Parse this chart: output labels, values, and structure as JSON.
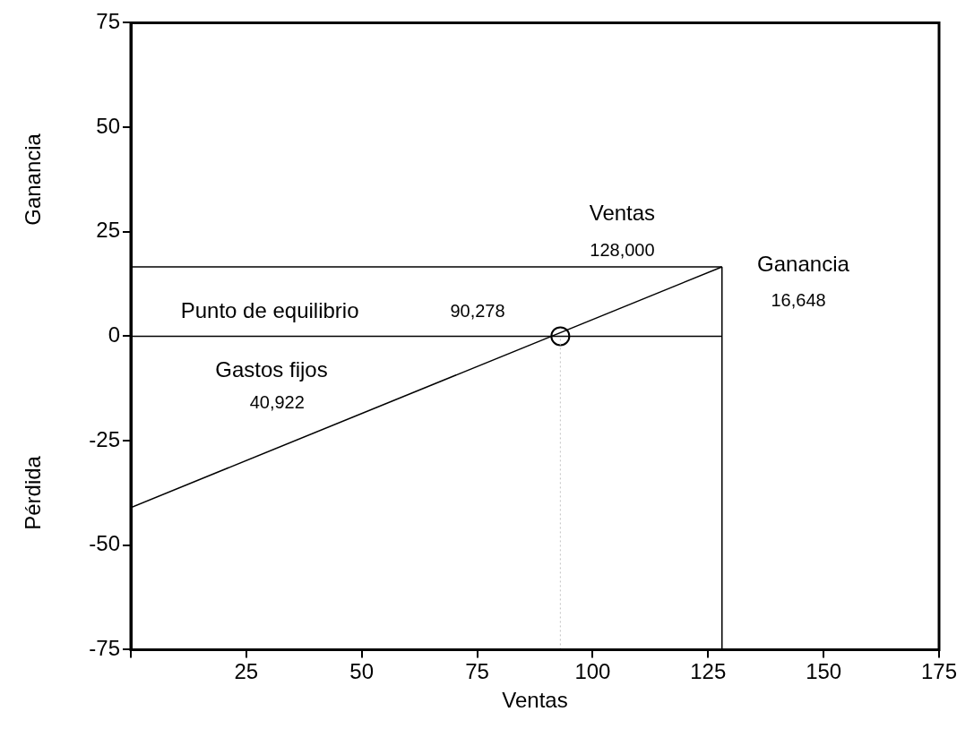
{
  "chart_data": {
    "type": "line",
    "xlabel": "Ventas",
    "ylabel": "Ganancia",
    "xlim": [
      0,
      175
    ],
    "xticks": [
      {
        "value": 0,
        "label": null
      },
      25,
      50,
      75,
      100,
      125,
      150,
      175
    ],
    "ylim": [
      -75,
      75
    ],
    "yticks": [
      -75,
      -50,
      -25,
      0,
      25,
      50,
      75
    ],
    "grid": false,
    "legend": false,
    "series": [
      {
        "color": "#000000",
        "x": [
          0,
          128
        ],
        "values": [
          -41,
          16.6
        ],
        "marker": "none",
        "line_style": "solid"
      },
      {
        "color": "#000000",
        "x": [
          0,
          128
        ],
        "values": [
          16.6,
          16.6
        ],
        "marker": "none",
        "line_style": "solid"
      },
      {
        "color": "#000000",
        "x": [
          0,
          128
        ],
        "values": [
          0,
          0
        ],
        "marker": "none",
        "line_style": "solid"
      },
      {
        "color": "#000000",
        "x": [
          128,
          128
        ],
        "values": [
          -75,
          16.6
        ],
        "marker": "none",
        "line_style": "solid"
      },
      {
        "color": "#c0c0c0",
        "x": [
          93,
          93
        ],
        "values": [
          -75,
          0
        ],
        "marker": "none",
        "line_style": "dotted"
      },
      {
        "type": "scatter",
        "color": "#000000",
        "x": [
          93
        ],
        "values": [
          0
        ],
        "marker": "circle"
      }
    ],
    "annotations": [
      "Ventas",
      "128,000",
      "Ganancia",
      "16,648",
      "Punto de equilibrio",
      "90,278",
      "Gastos fijos",
      "40,922",
      "Pérdida"
    ]
  }
}
